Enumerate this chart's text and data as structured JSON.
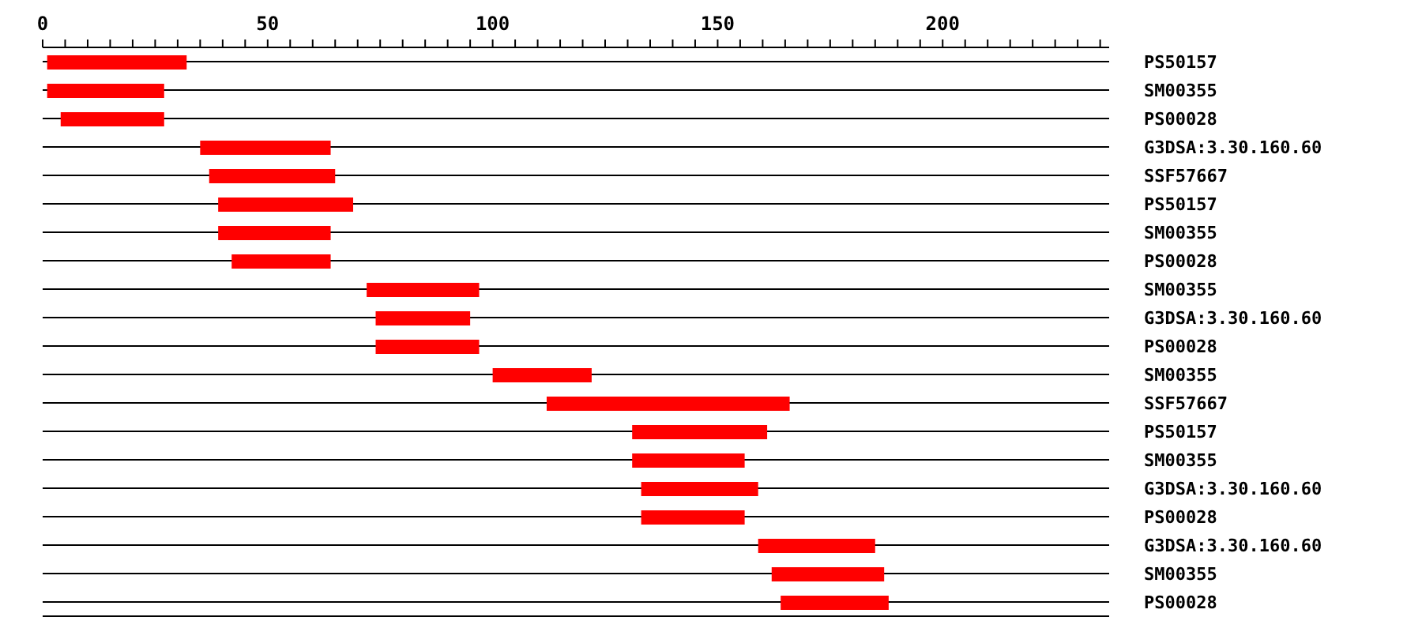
{
  "chart_data": {
    "type": "bar",
    "orientation": "horizontal",
    "categories": [
      "PS50157",
      "SM00355",
      "PS00028",
      "G3DSA:3.30.160.60",
      "SSF57667",
      "PS50157",
      "SM00355",
      "PS00028",
      "SM00355",
      "G3DSA:3.30.160.60",
      "PS00028",
      "SM00355",
      "SSF57667",
      "PS50157",
      "SM00355",
      "G3DSA:3.30.160.60",
      "PS00028",
      "G3DSA:3.30.160.60",
      "SM00355",
      "PS00028"
    ],
    "base": [
      1,
      1,
      4,
      35,
      37,
      39,
      39,
      42,
      72,
      74,
      74,
      100,
      112,
      131,
      131,
      133,
      133,
      159,
      162,
      164
    ],
    "values": [
      31,
      26,
      23,
      29,
      28,
      30,
      25,
      22,
      25,
      21,
      23,
      22,
      54,
      30,
      25,
      26,
      23,
      26,
      25,
      24
    ],
    "color": "#ff0000",
    "xlim": [
      0,
      237
    ],
    "xticks": [
      0,
      {
        "value": 5,
        "label": null
      },
      {
        "value": 10,
        "label": null
      },
      {
        "value": 15,
        "label": null
      },
      {
        "value": 20,
        "label": null
      },
      {
        "value": 25,
        "label": null
      },
      {
        "value": 30,
        "label": null
      },
      {
        "value": 35,
        "label": null
      },
      {
        "value": 40,
        "label": null
      },
      {
        "value": 45,
        "label": null
      },
      50,
      {
        "value": 55,
        "label": null
      },
      {
        "value": 60,
        "label": null
      },
      {
        "value": 65,
        "label": null
      },
      {
        "value": 70,
        "label": null
      },
      {
        "value": 75,
        "label": null
      },
      {
        "value": 80,
        "label": null
      },
      {
        "value": 85,
        "label": null
      },
      {
        "value": 90,
        "label": null
      },
      {
        "value": 95,
        "label": null
      },
      100,
      {
        "value": 105,
        "label": null
      },
      {
        "value": 110,
        "label": null
      },
      {
        "value": 115,
        "label": null
      },
      {
        "value": 120,
        "label": null
      },
      {
        "value": 125,
        "label": null
      },
      {
        "value": 130,
        "label": null
      },
      {
        "value": 135,
        "label": null
      },
      {
        "value": 140,
        "label": null
      },
      {
        "value": 145,
        "label": null
      },
      150,
      {
        "value": 155,
        "label": null
      },
      {
        "value": 160,
        "label": null
      },
      {
        "value": 165,
        "label": null
      },
      {
        "value": 170,
        "label": null
      },
      {
        "value": 175,
        "label": null
      },
      {
        "value": 180,
        "label": null
      },
      {
        "value": 185,
        "label": null
      },
      {
        "value": 190,
        "label": null
      },
      {
        "value": 195,
        "label": null
      },
      200,
      {
        "value": 205,
        "label": null
      },
      {
        "value": 210,
        "label": null
      },
      {
        "value": 215,
        "label": null
      },
      {
        "value": 220,
        "label": null
      },
      {
        "value": 225,
        "label": null
      },
      {
        "value": 230,
        "label": null
      },
      {
        "value": 235,
        "label": null
      }
    ],
    "grid": "y"
  }
}
